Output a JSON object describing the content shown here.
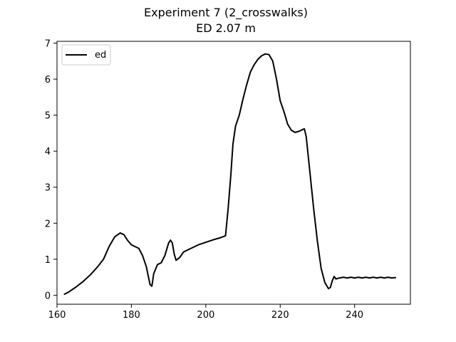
{
  "chart_data": {
    "type": "line",
    "title": "Experiment 7 (2_crosswalks)",
    "subtitle": "ED 2.07 m",
    "xlabel": "",
    "ylabel": "",
    "xlim": [
      160,
      255
    ],
    "ylim": [
      -0.25,
      7.05
    ],
    "x_ticks": [
      160,
      180,
      200,
      220,
      240
    ],
    "y_ticks": [
      0,
      1,
      2,
      3,
      4,
      5,
      6,
      7
    ],
    "grid": false,
    "legend": {
      "position": "top-left",
      "entries": [
        "ed"
      ]
    },
    "series": [
      {
        "name": "ed",
        "color": "#000000",
        "x": [
          162,
          163,
          165,
          167,
          169,
          171,
          172.5,
          174,
          175.5,
          177,
          178,
          179,
          180,
          181,
          182,
          183,
          184,
          185,
          185.5,
          186,
          187,
          188,
          189,
          190,
          190.5,
          191,
          191.5,
          192,
          193,
          194,
          196,
          198,
          200,
          202,
          204,
          205.3,
          206,
          206.7,
          207.3,
          208,
          209,
          210,
          211,
          212,
          213,
          214,
          215,
          216,
          217,
          218,
          219,
          220,
          221,
          222,
          223,
          224,
          225,
          226,
          226.5,
          227,
          228,
          229,
          230,
          231,
          232,
          233,
          233.5,
          234,
          234.5,
          235,
          235.5,
          236,
          237,
          238,
          239,
          240,
          241,
          242,
          243,
          244,
          245,
          246,
          247,
          248,
          249,
          250,
          251
        ],
        "y": [
          0.03,
          0.08,
          0.22,
          0.38,
          0.57,
          0.8,
          1.0,
          1.35,
          1.62,
          1.73,
          1.68,
          1.52,
          1.4,
          1.35,
          1.3,
          1.1,
          0.8,
          0.3,
          0.25,
          0.6,
          0.85,
          0.9,
          1.1,
          1.45,
          1.53,
          1.45,
          1.15,
          0.97,
          1.05,
          1.2,
          1.3,
          1.4,
          1.47,
          1.54,
          1.6,
          1.65,
          2.4,
          3.3,
          4.2,
          4.7,
          5.0,
          5.45,
          5.85,
          6.2,
          6.4,
          6.55,
          6.65,
          6.7,
          6.68,
          6.5,
          6.0,
          5.4,
          5.1,
          4.75,
          4.58,
          4.52,
          4.55,
          4.6,
          4.62,
          4.4,
          3.4,
          2.4,
          1.5,
          0.75,
          0.35,
          0.18,
          0.22,
          0.4,
          0.52,
          0.45,
          0.47,
          0.48,
          0.5,
          0.48,
          0.5,
          0.48,
          0.5,
          0.48,
          0.5,
          0.48,
          0.5,
          0.48,
          0.5,
          0.48,
          0.5,
          0.48,
          0.49
        ]
      }
    ]
  }
}
